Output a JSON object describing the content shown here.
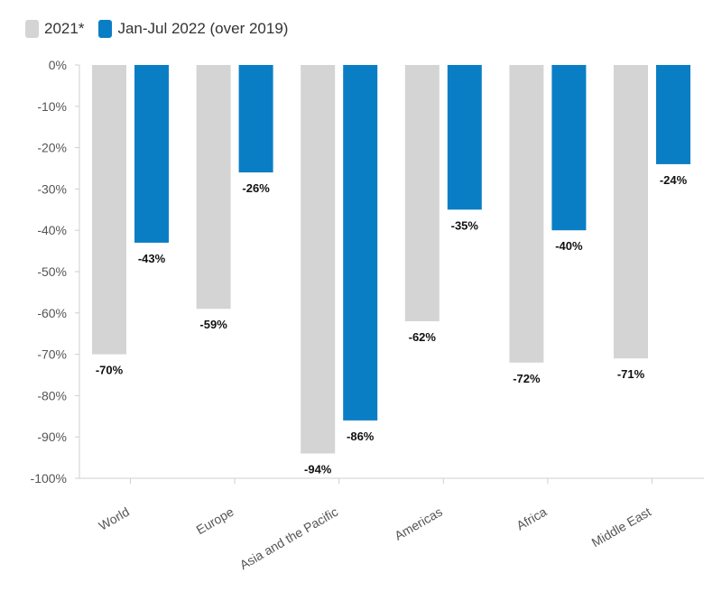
{
  "chart_data": {
    "type": "bar",
    "categories": [
      "World",
      "Europe",
      "Asia and the Pacific",
      "Americas",
      "Africa",
      "Middle East"
    ],
    "series": [
      {
        "name": "2021*",
        "color": "#d4d4d4",
        "values": [
          -70,
          -59,
          -94,
          -62,
          -72,
          -71
        ]
      },
      {
        "name": "Jan-Jul 2022 (over 2019)",
        "color": "#0a7ec5",
        "values": [
          -43,
          -26,
          -86,
          -35,
          -40,
          -24
        ]
      }
    ],
    "ylim": [
      -100,
      0
    ],
    "yticks": [
      0,
      -10,
      -20,
      -30,
      -40,
      -50,
      -60,
      -70,
      -80,
      -90,
      -100
    ],
    "tick_suffix": "%",
    "grid": false,
    "legend_position": "top-left",
    "title": "",
    "xlabel": "",
    "ylabel": ""
  }
}
